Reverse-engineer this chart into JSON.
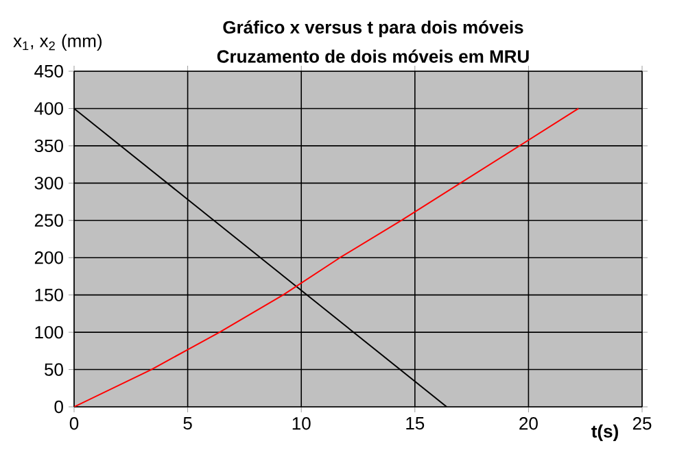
{
  "chart_data": {
    "type": "line",
    "title": "Gráfico x versus t para dois móveis",
    "subtitle": "Cruzamento de dois móveis em MRU",
    "xlabel": "t(s)",
    "ylabel": "x$_{1}$, x$_{2}$ (mm)",
    "series": [
      {
        "color": "#000000",
        "x": [
          0,
          16.4
        ],
        "values": [
          400,
          0
        ]
      },
      {
        "color": "#ff0000",
        "x": [
          0,
          3.4,
          6.4,
          9.2,
          11.7,
          14.4,
          17.0,
          19.6,
          22.2
        ],
        "values": [
          0,
          50,
          100,
          150,
          200,
          250,
          300,
          350,
          400
        ]
      }
    ],
    "xlim": [
      0,
      25
    ],
    "xticks": [
      0,
      5,
      10,
      15,
      20,
      25
    ],
    "ylim": [
      0,
      450
    ],
    "yticks": [
      0,
      50,
      100,
      150,
      200,
      250,
      300,
      350,
      400,
      450
    ],
    "grid": true,
    "marker": "none",
    "line_style": "solid"
  }
}
